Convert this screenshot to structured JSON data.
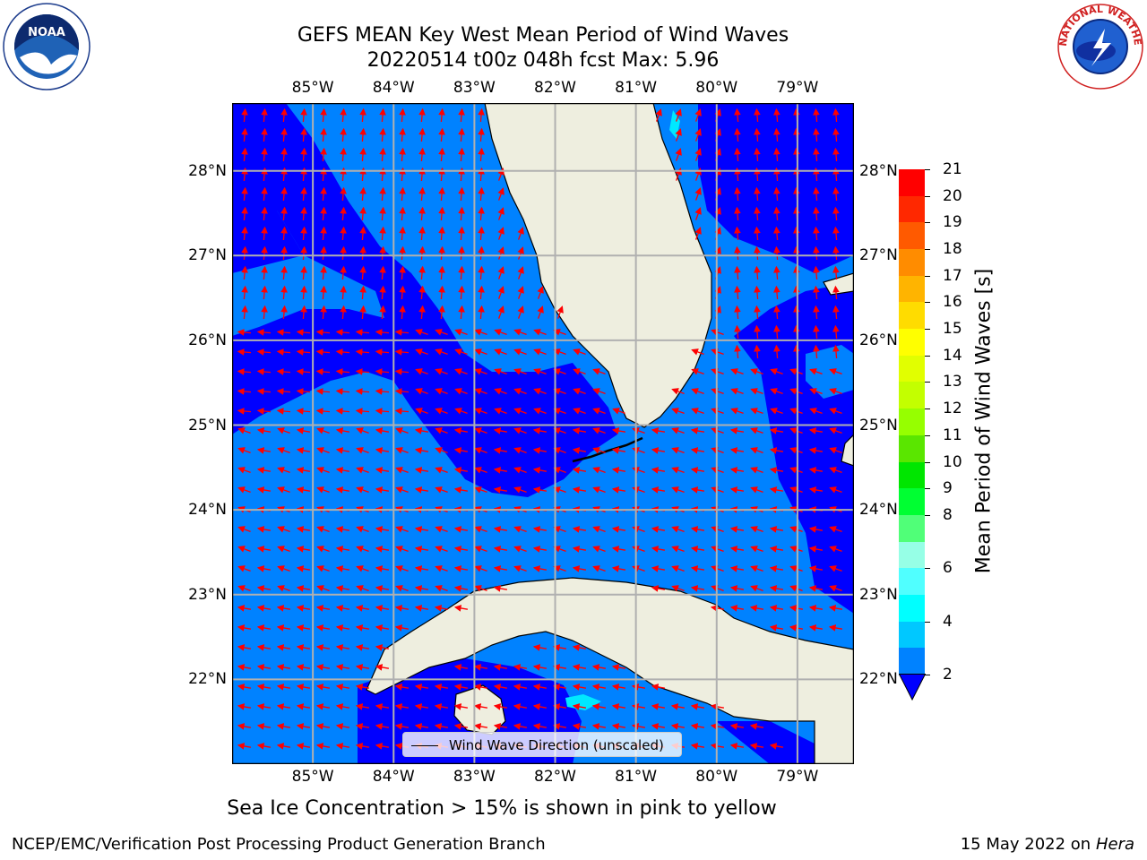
{
  "header": {
    "title_line1": "GEFS MEAN Key West Mean Period of Wind Waves",
    "title_line2": "20220514 t00z 048h fcst   Max: 5.96"
  },
  "logos": {
    "left": {
      "icon": "noaa-logo",
      "text": "NOAA"
    },
    "right": {
      "icon": "nws-logo",
      "text": "NATIONAL WEATHER SERVICE"
    }
  },
  "map": {
    "lon_labels": [
      "85°W",
      "84°W",
      "83°W",
      "82°W",
      "81°W",
      "80°W",
      "79°W"
    ],
    "lat_labels": [
      "28°N",
      "27°N",
      "26°N",
      "25°N",
      "24°N",
      "23°N",
      "22°N"
    ],
    "lon_range": [
      -86.0,
      -78.3
    ],
    "lat_range": [
      21.0,
      28.8
    ],
    "colors": {
      "land": "#eeeedf",
      "band_2_4": "#0082ff",
      "band_lt2": "#0000ff",
      "band_4_6": "#00e8ff",
      "arrows": "#ff0000",
      "grid": "#b0b0b0"
    }
  },
  "colorbar": {
    "label": "Mean Period of Wind Waves [s]",
    "ticks": [
      "21",
      "20",
      "19",
      "18",
      "17",
      "16",
      "15",
      "14",
      "13",
      "12",
      "11",
      "10",
      "9",
      "8",
      "6",
      "4",
      "2"
    ],
    "colors": [
      "#ff0000",
      "#ff2800",
      "#ff5a00",
      "#ff8c00",
      "#ffb400",
      "#ffdc00",
      "#ffff00",
      "#e1ff00",
      "#c3ff00",
      "#96ff00",
      "#5ae600",
      "#00e600",
      "#00ff32",
      "#50ff78",
      "#96ffe6",
      "#50ffff",
      "#00ffff",
      "#00c8ff",
      "#0082ff"
    ],
    "extend_color": "#0000ff"
  },
  "legend": {
    "label": "Wind Wave Direction (unscaled)"
  },
  "footer": {
    "note": "Sea Ice Concentration > 15% is shown in pink to yellow",
    "credit_left": "NCEP/EMC/Verification Post Processing Product Generation Branch",
    "credit_right_date": "15 May 2022 on",
    "credit_right_machine": "Hera"
  }
}
